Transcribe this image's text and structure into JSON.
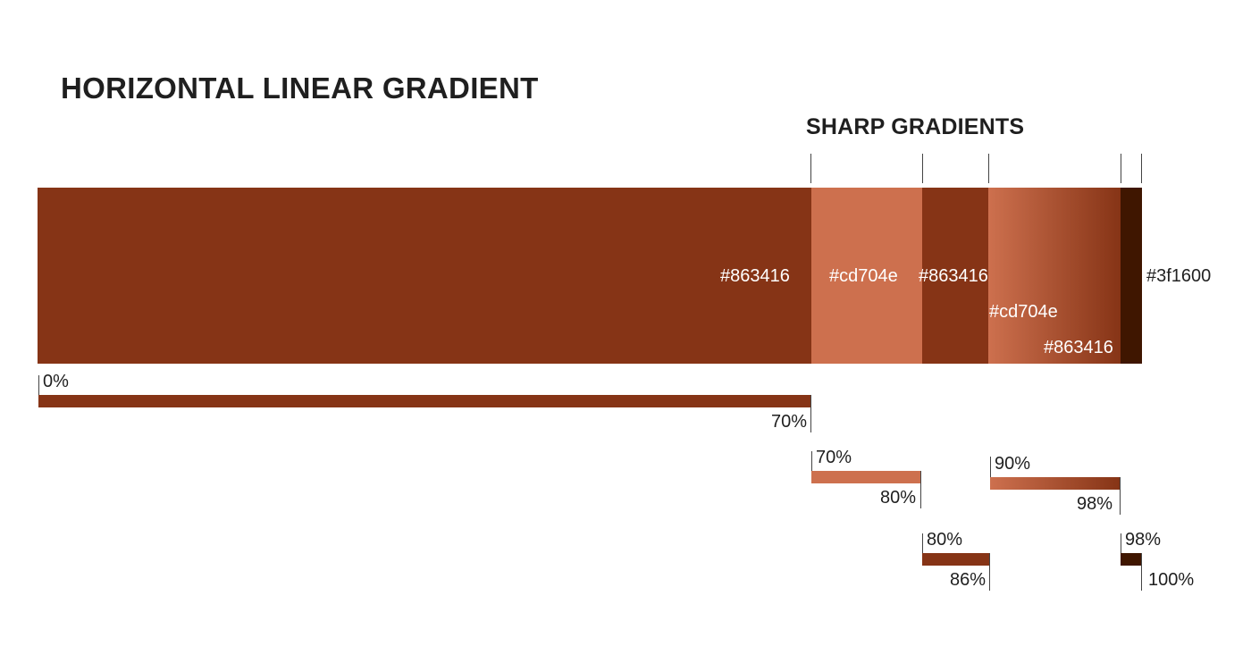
{
  "title": "HORIZONTAL LINEAR GRADIENT",
  "subtitle": "SHARP GRADIENTS",
  "colors": {
    "base": "#863416",
    "light": "#cd704e",
    "dark": "#3f1600"
  },
  "stops": [
    {
      "from": 0,
      "to": 70,
      "label": "#863416",
      "color": "#863416"
    },
    {
      "from": 70,
      "to": 80,
      "label": "#cd704e",
      "color": "#cd704e"
    },
    {
      "from": 80,
      "to": 86,
      "label": "#863416",
      "color": "#863416"
    },
    {
      "from": 90,
      "to": 98,
      "label_start": "#cd704e",
      "label_end": "#863416",
      "color_start": "#cd704e",
      "color_end": "#863416"
    },
    {
      "from": 98,
      "to": 100,
      "label": "#3f1600",
      "color": "#3f1600"
    }
  ],
  "ranges": {
    "r1": {
      "start": "0%",
      "end": "70%"
    },
    "r2": {
      "start": "70%",
      "end": "80%"
    },
    "r3": {
      "start": "80%",
      "end": "86%"
    },
    "r4": {
      "start": "90%",
      "end": "98%"
    },
    "r5": {
      "start": "98%",
      "end": "100%"
    }
  }
}
